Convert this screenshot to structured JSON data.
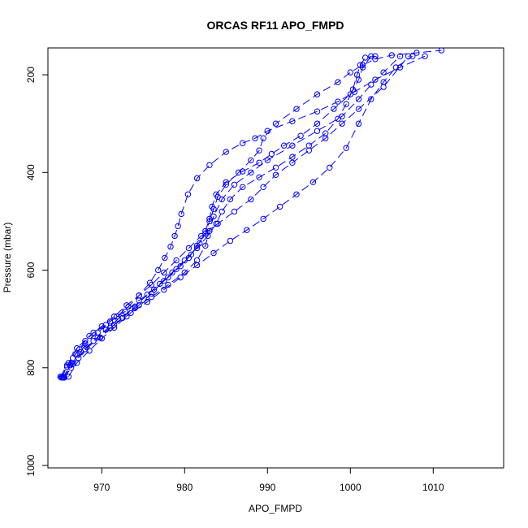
{
  "chart_data": {
    "type": "scatter",
    "title": "ORCAS RF11 APO_FMPD",
    "xlabel": "APO_FMPD",
    "ylabel": "Pressure (mbar)",
    "xlim": [
      963.5,
      1018.5
    ],
    "ylim": [
      1005,
      145
    ],
    "y_reversed": true,
    "x_ticks": [
      970,
      980,
      990,
      1000,
      1010
    ],
    "y_ticks": [
      200,
      400,
      600,
      800,
      1000
    ],
    "grid": false,
    "legend": "none",
    "marker": "open-circle",
    "line_style": "dashed",
    "color": "#0000ff",
    "series": [
      {
        "x": [
          965.1,
          965.8,
          966.5,
          967.3,
          968.0,
          969.0,
          970.5,
          971.8,
          973.2,
          974.5,
          975.8,
          976.8,
          977.6,
          978.3,
          978.8,
          979.2,
          979.6,
          980.4,
          981.5,
          983.0,
          985.0,
          987.0,
          988.5,
          990.0,
          993.0,
          996.0,
          998.5,
          1000.5,
          1003.0,
          1006.0,
          1009.0
        ],
        "y": [
          820,
          798,
          780,
          762,
          745,
          728,
          712,
          695,
          675,
          652,
          626,
          600,
          575,
          552,
          530,
          510,
          485,
          445,
          412,
          385,
          358,
          340,
          330,
          315,
          295,
          275,
          255,
          235,
          210,
          185,
          162
        ]
      },
      {
        "x": [
          965.2,
          966.0,
          967.0,
          968.5,
          970.0,
          971.5,
          973.0,
          974.5,
          976.0,
          977.5,
          979.0,
          980.5,
          982.0,
          984.0,
          986.0,
          988.0,
          989.5,
          991.0,
          993.0,
          995.0,
          997.0,
          999.0,
          1001.0,
          1004.0,
          1007.0
        ],
        "y": [
          820,
          790,
          760,
          735,
          715,
          695,
          672,
          652,
          630,
          605,
          580,
          555,
          530,
          505,
          480,
          455,
          430,
          405,
          380,
          355,
          330,
          300,
          270,
          225,
          162
        ]
      },
      {
        "x": [
          965.3,
          966.2,
          967.5,
          969.0,
          970.5,
          972.0,
          974.0,
          976.0,
          978.0,
          980.0,
          981.5,
          982.5,
          983.0,
          983.5,
          984.5,
          986.0,
          988.0,
          990.0,
          993.0,
          996.0,
          999.0,
          1001.0,
          1002.5,
          1004.0,
          1006.0
        ],
        "y": [
          820,
          795,
          768,
          745,
          722,
          700,
          678,
          655,
          630,
          605,
          580,
          550,
          520,
          490,
          455,
          425,
          400,
          375,
          345,
          315,
          285,
          250,
          220,
          195,
          162
        ]
      },
      {
        "x": [
          965.4,
          966.5,
          968.0,
          969.8,
          971.5,
          973.5,
          975.5,
          977.5,
          979.5,
          981.5,
          983.5,
          985.5,
          987.5,
          989.5,
          991.5,
          993.5,
          995.5,
          997.5,
          999.5,
          1001.0,
          1002.5,
          1004.0,
          1005.5,
          1007.5
        ],
        "y": [
          820,
          792,
          762,
          738,
          712,
          688,
          665,
          640,
          615,
          590,
          565,
          540,
          518,
          495,
          470,
          445,
          420,
          390,
          350,
          300,
          250,
          215,
          185,
          162
        ]
      },
      {
        "x": [
          965.5,
          966.3,
          967.2,
          968.2,
          969.5,
          971.0,
          972.5,
          974.0,
          975.5,
          977.0,
          978.5,
          980.0,
          981.5,
          982.8,
          983.8,
          984.5,
          985.5,
          987.0,
          989.0,
          991.0,
          993.0,
          995.0,
          997.0,
          998.5,
          999.5,
          1000.3,
          1000.8,
          1001.2,
          1001.8,
          1003.0
        ],
        "y": [
          820,
          800,
          780,
          758,
          738,
          718,
          698,
          675,
          650,
          628,
          605,
          580,
          555,
          530,
          505,
          480,
          455,
          430,
          410,
          390,
          368,
          345,
          320,
          290,
          260,
          230,
          200,
          180,
          165,
          162
        ]
      },
      {
        "x": [
          965.0,
          965.8,
          966.8,
          968.0,
          969.5,
          971.0,
          972.8,
          974.5,
          976.3,
          978.0,
          979.5,
          980.8,
          981.8,
          982.5,
          983.0,
          983.3,
          983.8,
          985.0,
          987.0,
          989.0,
          990.5,
          992.0,
          994.0,
          996.0,
          998.0,
          1000.0,
          1001.0,
          1001.5,
          1002.5
        ],
        "y": [
          818,
          795,
          772,
          750,
          728,
          705,
          685,
          662,
          640,
          615,
          592,
          568,
          545,
          520,
          495,
          470,
          445,
          420,
          398,
          380,
          362,
          345,
          325,
          300,
          270,
          240,
          210,
          185,
          162
        ]
      },
      {
        "x": [
          966.0,
          967.0,
          968.5,
          970.0,
          971.5,
          973.0,
          974.5,
          976.0,
          977.5,
          979.0,
          980.5,
          981.5,
          982.5,
          983.0,
          983.5,
          984.0,
          985.0,
          986.5,
          988.0,
          989.0,
          989.5,
          991.0,
          993.5,
          996.0,
          998.5,
          1000.0,
          1001.5,
          1003.0,
          1005.0,
          1008.0,
          1011.0
        ],
        "y": [
          818,
          790,
          765,
          740,
          718,
          695,
          672,
          648,
          622,
          598,
          575,
          550,
          525,
          500,
          475,
          450,
          425,
          400,
          375,
          355,
          330,
          300,
          270,
          240,
          215,
          195,
          180,
          168,
          160,
          155,
          150
        ]
      }
    ]
  }
}
